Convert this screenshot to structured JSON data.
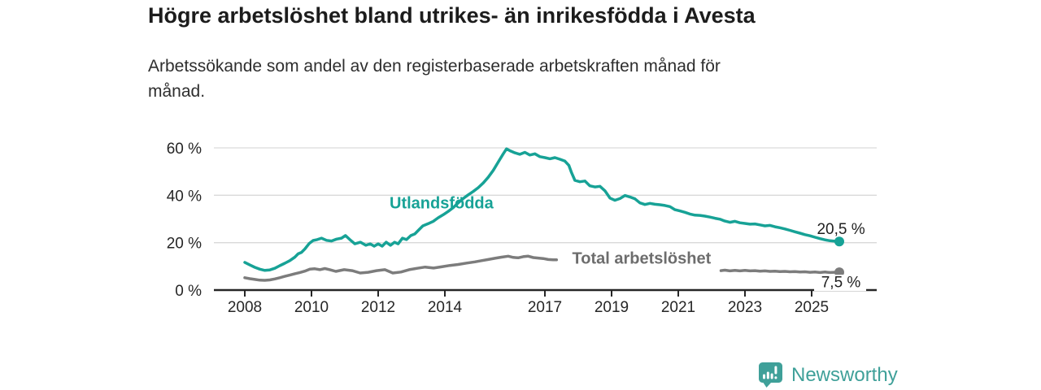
{
  "header": {
    "title": "Högre arbetslöshet bland utrikes- än inrikesfödda i Avesta",
    "subtitle_line1": "Arbetssökande som andel av den registerbaserade arbetskraften månad för",
    "subtitle_line2": "månad."
  },
  "footer": {
    "brand": "Newsworthy",
    "logo_icon": "newsworthy-bar-chart-bubble-icon"
  },
  "colors": {
    "accent_teal": "#17a296",
    "series_gray": "#7c7c7c",
    "gray_label": "#6d6d6d",
    "grid": "#d9d9d9",
    "axis": "#262626",
    "text_dark": "#1f1f1f",
    "logo_teal": "#3fa099"
  },
  "chart_data": {
    "type": "line",
    "title": "Högre arbetslöshet bland utrikes- än inrikesfödda i Avesta",
    "subtitle": "Arbetssökande som andel av den registerbaserade arbetskraften månad för månad.",
    "xlabel": "",
    "ylabel": "",
    "grid": "horizontal",
    "xlim": [
      2007.1,
      2026.9
    ],
    "ylim": [
      0,
      63
    ],
    "legend_position": "inline-labels",
    "y_ticks": [
      {
        "value": 0,
        "label": "0 %"
      },
      {
        "value": 20,
        "label": "20 %"
      },
      {
        "value": 40,
        "label": "40 %"
      },
      {
        "value": 60,
        "label": "60 %"
      }
    ],
    "x_ticks": [
      {
        "value": 2008,
        "label": "2008"
      },
      {
        "value": 2010,
        "label": "2010"
      },
      {
        "value": 2012,
        "label": "2012"
      },
      {
        "value": 2014,
        "label": "2014"
      },
      {
        "value": 2017,
        "label": "2017"
      },
      {
        "value": 2019,
        "label": "2019"
      },
      {
        "value": 2021,
        "label": "2021"
      },
      {
        "value": 2023,
        "label": "2023"
      },
      {
        "value": 2025,
        "label": "2025"
      }
    ],
    "series": [
      {
        "name": "Utlandsfödda",
        "color": "#17a296",
        "label_color": "#17a296",
        "label_pos": {
          "x": 2013.9,
          "y": 34.5
        },
        "end_label": "20,5 %",
        "end_value": 20.5,
        "end_label_side": "above",
        "end_label_bg": false,
        "segments": [
          [
            [
              2008.0,
              11.7
            ],
            [
              2008.15,
              10.6
            ],
            [
              2008.3,
              9.6
            ],
            [
              2008.45,
              8.8
            ],
            [
              2008.6,
              8.3
            ],
            [
              2008.75,
              8.5
            ],
            [
              2008.9,
              9.2
            ],
            [
              2009.05,
              10.3
            ],
            [
              2009.2,
              11.3
            ],
            [
              2009.35,
              12.4
            ],
            [
              2009.5,
              13.9
            ],
            [
              2009.6,
              15.3
            ],
            [
              2009.7,
              15.9
            ],
            [
              2009.8,
              17.3
            ],
            [
              2009.93,
              19.6
            ],
            [
              2010.05,
              20.9
            ],
            [
              2010.17,
              21.3
            ],
            [
              2010.3,
              21.9
            ],
            [
              2010.45,
              21.0
            ],
            [
              2010.6,
              20.7
            ],
            [
              2010.75,
              21.5
            ],
            [
              2010.9,
              21.9
            ],
            [
              2011.02,
              23.0
            ],
            [
              2011.15,
              21.3
            ],
            [
              2011.3,
              19.5
            ],
            [
              2011.47,
              20.2
            ],
            [
              2011.63,
              18.9
            ],
            [
              2011.76,
              19.5
            ],
            [
              2011.88,
              18.5
            ],
            [
              2012.0,
              19.5
            ],
            [
              2012.12,
              18.5
            ],
            [
              2012.24,
              20.2
            ],
            [
              2012.37,
              18.9
            ],
            [
              2012.49,
              20.2
            ],
            [
              2012.6,
              19.5
            ],
            [
              2012.73,
              21.9
            ],
            [
              2012.85,
              21.3
            ],
            [
              2012.98,
              23.0
            ],
            [
              2013.1,
              23.7
            ],
            [
              2013.22,
              25.4
            ],
            [
              2013.34,
              27.1
            ],
            [
              2013.5,
              28.0
            ],
            [
              2013.65,
              29.0
            ],
            [
              2013.8,
              30.5
            ],
            [
              2013.95,
              31.8
            ],
            [
              2014.1,
              33.2
            ],
            [
              2014.25,
              34.8
            ],
            [
              2014.4,
              36.8
            ],
            [
              2014.55,
              38.6
            ],
            [
              2014.7,
              40.2
            ],
            [
              2014.85,
              41.6
            ],
            [
              2015.0,
              43.2
            ],
            [
              2015.15,
              45.2
            ],
            [
              2015.3,
              47.6
            ],
            [
              2015.45,
              50.5
            ],
            [
              2015.6,
              54.0
            ],
            [
              2015.75,
              57.5
            ],
            [
              2015.85,
              59.6
            ],
            [
              2015.95,
              58.8
            ],
            [
              2016.1,
              57.9
            ],
            [
              2016.25,
              57.3
            ],
            [
              2016.4,
              58.1
            ],
            [
              2016.55,
              57.0
            ],
            [
              2016.7,
              57.5
            ],
            [
              2016.85,
              56.3
            ],
            [
              2017.0,
              55.9
            ],
            [
              2017.15,
              55.4
            ],
            [
              2017.3,
              55.9
            ],
            [
              2017.45,
              55.2
            ],
            [
              2017.6,
              54.4
            ],
            [
              2017.72,
              52.6
            ],
            [
              2017.8,
              49.5
            ],
            [
              2017.9,
              46.3
            ],
            [
              2018.05,
              45.7
            ],
            [
              2018.2,
              46.0
            ],
            [
              2018.35,
              44.0
            ],
            [
              2018.5,
              43.5
            ],
            [
              2018.65,
              43.8
            ],
            [
              2018.8,
              41.9
            ],
            [
              2018.95,
              38.8
            ],
            [
              2019.1,
              37.9
            ],
            [
              2019.25,
              38.6
            ],
            [
              2019.4,
              39.9
            ],
            [
              2019.55,
              39.3
            ],
            [
              2019.7,
              38.5
            ],
            [
              2019.85,
              36.8
            ],
            [
              2020.0,
              36.1
            ],
            [
              2020.15,
              36.6
            ],
            [
              2020.3,
              36.2
            ],
            [
              2020.45,
              36.0
            ],
            [
              2020.6,
              35.7
            ],
            [
              2020.75,
              35.2
            ],
            [
              2020.9,
              33.9
            ],
            [
              2021.05,
              33.4
            ],
            [
              2021.2,
              32.8
            ],
            [
              2021.35,
              32.1
            ],
            [
              2021.5,
              31.6
            ],
            [
              2021.65,
              31.5
            ],
            [
              2021.8,
              31.2
            ],
            [
              2021.95,
              30.8
            ],
            [
              2022.1,
              30.3
            ],
            [
              2022.25,
              29.9
            ],
            [
              2022.4,
              29.1
            ],
            [
              2022.55,
              28.6
            ],
            [
              2022.7,
              29.0
            ],
            [
              2022.85,
              28.4
            ],
            [
              2023.0,
              28.1
            ],
            [
              2023.15,
              27.8
            ],
            [
              2023.3,
              27.9
            ],
            [
              2023.45,
              27.5
            ],
            [
              2023.6,
              27.1
            ],
            [
              2023.75,
              27.3
            ],
            [
              2023.9,
              26.7
            ],
            [
              2024.05,
              26.3
            ],
            [
              2024.2,
              25.8
            ],
            [
              2024.35,
              25.2
            ],
            [
              2024.5,
              24.6
            ],
            [
              2024.65,
              24.0
            ],
            [
              2024.8,
              23.4
            ],
            [
              2024.95,
              22.9
            ],
            [
              2025.1,
              22.3
            ],
            [
              2025.25,
              21.7
            ],
            [
              2025.4,
              21.2
            ],
            [
              2025.55,
              20.8
            ],
            [
              2025.7,
              20.6
            ],
            [
              2025.83,
              20.5
            ]
          ]
        ]
      },
      {
        "name": "Total arbetslöshet",
        "color": "#7c7c7c",
        "label_color": "#6d6d6d",
        "label_pos": {
          "x": 2019.9,
          "y": 11.2
        },
        "end_label": "7,5 %",
        "end_value": 7.5,
        "end_label_side": "below",
        "end_label_bg": true,
        "segments": [
          [
            [
              2008.0,
              5.2
            ],
            [
              2008.15,
              4.8
            ],
            [
              2008.3,
              4.5
            ],
            [
              2008.45,
              4.2
            ],
            [
              2008.6,
              4.1
            ],
            [
              2008.75,
              4.3
            ],
            [
              2008.9,
              4.7
            ],
            [
              2009.05,
              5.2
            ],
            [
              2009.2,
              5.8
            ],
            [
              2009.35,
              6.3
            ],
            [
              2009.5,
              6.9
            ],
            [
              2009.65,
              7.4
            ],
            [
              2009.8,
              8.0
            ],
            [
              2009.95,
              8.8
            ],
            [
              2010.1,
              9.0
            ],
            [
              2010.25,
              8.6
            ],
            [
              2010.4,
              9.1
            ],
            [
              2010.55,
              8.6
            ],
            [
              2010.73,
              7.9
            ],
            [
              2010.98,
              8.6
            ],
            [
              2011.22,
              8.2
            ],
            [
              2011.46,
              7.2
            ],
            [
              2011.7,
              7.5
            ],
            [
              2011.95,
              8.2
            ],
            [
              2012.2,
              8.6
            ],
            [
              2012.44,
              7.2
            ],
            [
              2012.68,
              7.6
            ],
            [
              2012.93,
              8.6
            ],
            [
              2013.17,
              9.2
            ],
            [
              2013.41,
              9.7
            ],
            [
              2013.66,
              9.3
            ],
            [
              2013.9,
              9.8
            ],
            [
              2014.15,
              10.4
            ],
            [
              2014.4,
              10.8
            ],
            [
              2014.65,
              11.4
            ],
            [
              2014.9,
              11.9
            ],
            [
              2015.1,
              12.4
            ],
            [
              2015.3,
              12.9
            ],
            [
              2015.5,
              13.4
            ],
            [
              2015.7,
              13.9
            ],
            [
              2015.9,
              14.3
            ],
            [
              2016.05,
              13.8
            ],
            [
              2016.2,
              13.6
            ],
            [
              2016.35,
              14.1
            ],
            [
              2016.5,
              14.3
            ],
            [
              2016.65,
              13.7
            ],
            [
              2016.8,
              13.5
            ],
            [
              2016.95,
              13.3
            ],
            [
              2017.1,
              12.9
            ],
            [
              2017.25,
              12.8
            ],
            [
              2017.35,
              12.8
            ]
          ],
          [
            [
              2022.28,
              8.2
            ],
            [
              2022.4,
              8.4
            ],
            [
              2022.55,
              8.1
            ],
            [
              2022.7,
              8.3
            ],
            [
              2022.85,
              8.1
            ],
            [
              2023.0,
              8.3
            ],
            [
              2023.15,
              8.1
            ],
            [
              2023.3,
              8.2
            ],
            [
              2023.45,
              8.0
            ],
            [
              2023.6,
              8.1
            ],
            [
              2023.75,
              7.9
            ],
            [
              2023.9,
              8.0
            ],
            [
              2024.05,
              7.8
            ],
            [
              2024.2,
              7.9
            ],
            [
              2024.35,
              7.7
            ],
            [
              2024.5,
              7.8
            ],
            [
              2024.65,
              7.6
            ],
            [
              2024.8,
              7.7
            ],
            [
              2024.95,
              7.5
            ],
            [
              2025.1,
              7.6
            ],
            [
              2025.25,
              7.4
            ],
            [
              2025.4,
              7.6
            ],
            [
              2025.55,
              7.4
            ],
            [
              2025.7,
              7.5
            ],
            [
              2025.83,
              7.5
            ]
          ]
        ]
      }
    ]
  }
}
